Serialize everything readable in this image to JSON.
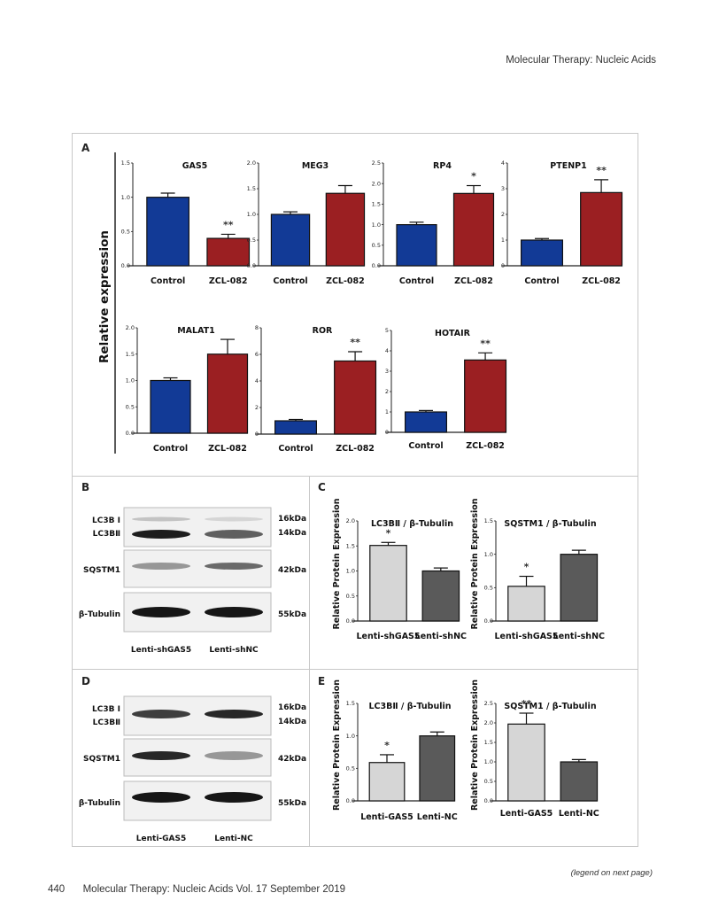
{
  "header": {
    "journal": "Molecular Therapy: Nucleic Acids"
  },
  "footer": {
    "page_number": "440",
    "citation": "Molecular Therapy: Nucleic Acids Vol. 17 September 2019",
    "legend_note": "(legend on next page)"
  },
  "panels": {
    "A": "A",
    "B": "B",
    "C": "C",
    "D": "D",
    "E": "E"
  },
  "colors": {
    "control": "#123a96",
    "treatment": "#9b1f22",
    "light_bar": "#d6d6d6",
    "dark_bar": "#5a5a5a"
  },
  "panel_a_ylabel": "Relative expression",
  "protein_ylabel": "Relative Protein Expression",
  "blots": {
    "B": {
      "row_labels": [
        "LC3B Ⅰ",
        "LC3BⅡ",
        "SQSTM1",
        "β-Tubulin"
      ],
      "sizes": [
        "16kDa",
        "14kDa",
        "42kDa",
        "55kDa"
      ],
      "lanes": [
        "Lenti-shGAS5",
        "Lenti-shNC"
      ]
    },
    "D": {
      "row_labels": [
        "LC3B Ⅰ",
        "LC3BⅡ",
        "SQSTM1",
        "β-Tubulin"
      ],
      "sizes": [
        "16kDa",
        "14kDa",
        "42kDa",
        "55kDa"
      ],
      "lanes": [
        "Lenti-GAS5",
        "Lenti-NC"
      ]
    }
  },
  "chart_data": [
    {
      "panel": "A",
      "type": "bar",
      "title": "GAS5",
      "categories": [
        "Control",
        "ZCL-082"
      ],
      "values": [
        1.0,
        0.4
      ],
      "errors": [
        0.06,
        0.06
      ],
      "significance": [
        "",
        "**"
      ],
      "yticks": [
        "0.0",
        "0.5",
        "1.0",
        "1.5"
      ],
      "ylim": [
        0,
        1.5
      ],
      "ylabel": "Relative expression"
    },
    {
      "panel": "A",
      "type": "bar",
      "title": "MEG3",
      "categories": [
        "Control",
        "ZCL-082"
      ],
      "values": [
        1.0,
        1.41
      ],
      "errors": [
        0.05,
        0.15
      ],
      "significance": [
        "",
        ""
      ],
      "yticks": [
        "0.0",
        "0.5",
        "1.0",
        "1.5",
        "2.0"
      ],
      "ylim": [
        0,
        2.0
      ],
      "ylabel": "Relative expression"
    },
    {
      "panel": "A",
      "type": "bar",
      "title": "RP4",
      "categories": [
        "Control",
        "ZCL-082"
      ],
      "values": [
        1.0,
        1.76
      ],
      "errors": [
        0.06,
        0.19
      ],
      "significance": [
        "",
        "*"
      ],
      "yticks": [
        "0.0",
        "0.5",
        "1.0",
        "1.5",
        "2.0",
        "2.5"
      ],
      "ylim": [
        0,
        2.5
      ],
      "ylabel": "Relative expression"
    },
    {
      "panel": "A",
      "type": "bar",
      "title": "PTENP1",
      "categories": [
        "Control",
        "ZCL-082"
      ],
      "values": [
        1.0,
        2.85
      ],
      "errors": [
        0.06,
        0.5
      ],
      "significance": [
        "",
        "**"
      ],
      "yticks": [
        "0",
        "1",
        "2",
        "3",
        "4"
      ],
      "ylim": [
        0,
        4
      ],
      "ylabel": "Relative expression"
    },
    {
      "panel": "A",
      "type": "bar",
      "title": "MALAT1",
      "categories": [
        "Control",
        "ZCL-082"
      ],
      "values": [
        1.0,
        1.5
      ],
      "errors": [
        0.05,
        0.28
      ],
      "significance": [
        "",
        ""
      ],
      "yticks": [
        "0.0",
        "0.5",
        "1.0",
        "1.5",
        "2.0"
      ],
      "ylim": [
        0,
        2.0
      ],
      "ylabel": "Relative expression"
    },
    {
      "panel": "A",
      "type": "bar",
      "title": "ROR",
      "categories": [
        "Control",
        "ZCL-082"
      ],
      "values": [
        1.0,
        5.5
      ],
      "errors": [
        0.1,
        0.7
      ],
      "significance": [
        "",
        "**"
      ],
      "yticks": [
        "0",
        "2",
        "4",
        "6",
        "8"
      ],
      "ylim": [
        0,
        8
      ],
      "ylabel": "Relative expression"
    },
    {
      "panel": "A",
      "type": "bar",
      "title": "HOTAIR",
      "categories": [
        "Control",
        "ZCL-082"
      ],
      "values": [
        1.0,
        3.55
      ],
      "errors": [
        0.07,
        0.35
      ],
      "significance": [
        "",
        "**"
      ],
      "yticks": [
        "0",
        "1",
        "2",
        "3",
        "4",
        "5"
      ],
      "ylim": [
        0,
        5
      ],
      "ylabel": "Relative expression"
    },
    {
      "panel": "C",
      "type": "bar",
      "title": "LC3BⅡ / β-Tubulin",
      "categories": [
        "Lenti-shGAS5",
        "Lenti-shNC"
      ],
      "values": [
        1.51,
        1.0
      ],
      "errors": [
        0.06,
        0.06
      ],
      "significance": [
        "*",
        ""
      ],
      "yticks": [
        "0.0",
        "0.5",
        "1.0",
        "1.5",
        "2.0"
      ],
      "ylim": [
        0,
        2.0
      ],
      "ylabel": "Relative Protein Expression"
    },
    {
      "panel": "C",
      "type": "bar",
      "title": "SQSTM1 / β-Tubulin",
      "categories": [
        "Lenti-shGAS5",
        "Lenti-shNC"
      ],
      "values": [
        0.52,
        1.0
      ],
      "errors": [
        0.15,
        0.06
      ],
      "significance": [
        "*",
        ""
      ],
      "yticks": [
        "0.0",
        "0.5",
        "1.0",
        "1.5"
      ],
      "ylim": [
        0,
        1.5
      ],
      "ylabel": "Relative Protein Expression"
    },
    {
      "panel": "E",
      "type": "bar",
      "title": "LC3BⅡ / β-Tubulin",
      "categories": [
        "Lenti-GAS5",
        "Lenti-NC"
      ],
      "values": [
        0.59,
        1.0
      ],
      "errors": [
        0.12,
        0.06
      ],
      "significance": [
        "*",
        ""
      ],
      "yticks": [
        "0.0",
        "0.5",
        "1.0",
        "1.5"
      ],
      "ylim": [
        0,
        1.5
      ],
      "ylabel": "Relative Protein Expression"
    },
    {
      "panel": "E",
      "type": "bar",
      "title": "SQSTM1 / β-Tubulin",
      "categories": [
        "Lenti-GAS5",
        "Lenti-NC"
      ],
      "values": [
        1.97,
        1.0
      ],
      "errors": [
        0.28,
        0.06
      ],
      "significance": [
        "**",
        ""
      ],
      "yticks": [
        "0.0",
        "0.5",
        "1.0",
        "1.5",
        "2.0",
        "2.5"
      ],
      "ylim": [
        0,
        2.5
      ],
      "ylabel": "Relative Protein Expression"
    }
  ]
}
